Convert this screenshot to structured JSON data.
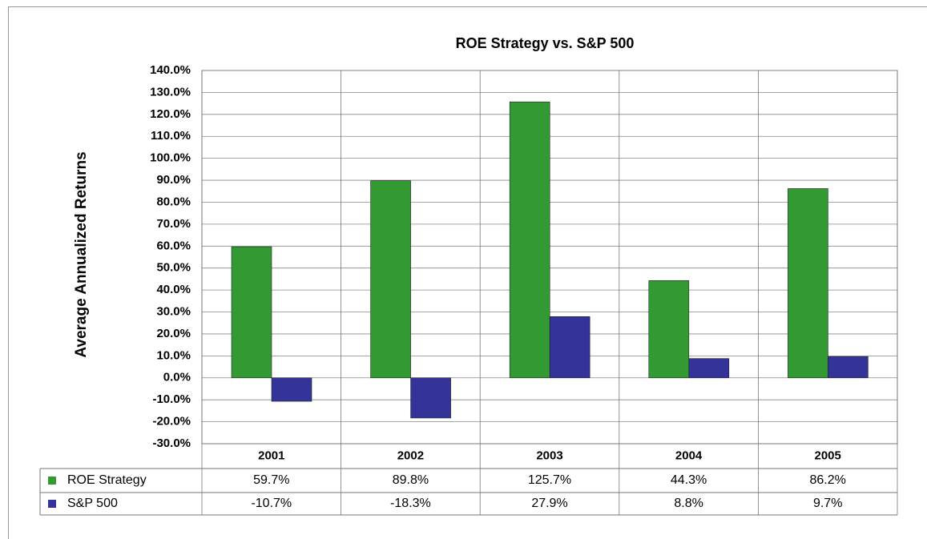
{
  "chart_data": {
    "type": "bar",
    "title": "ROE Strategy  vs.  S&P 500",
    "y_label": "Average Annualized Returns",
    "categories": [
      "2001",
      "2002",
      "2003",
      "2004",
      "2005"
    ],
    "series": [
      {
        "name": "ROE Strategy",
        "color": "#339933",
        "values": [
          59.7,
          89.8,
          125.7,
          44.3,
          86.2
        ],
        "value_labels": [
          "59.7%",
          "89.8%",
          "125.7%",
          "44.3%",
          "86.2%"
        ]
      },
      {
        "name": "S&P 500",
        "color": "#333399",
        "values": [
          -10.7,
          -18.3,
          27.9,
          8.8,
          9.7
        ],
        "value_labels": [
          "-10.7%",
          "-18.3%",
          "27.9%",
          "8.8%",
          "9.7%"
        ]
      }
    ],
    "ylim": [
      -30,
      140
    ],
    "yticks": [
      {
        "value": 140,
        "label": "140.0%"
      },
      {
        "value": 130,
        "label": "130.0%"
      },
      {
        "value": 120,
        "label": "120.0%"
      },
      {
        "value": 110,
        "label": "110.0%"
      },
      {
        "value": 100,
        "label": "100.0%"
      },
      {
        "value": 90,
        "label": "90.0%"
      },
      {
        "value": 80,
        "label": "80.0%"
      },
      {
        "value": 70,
        "label": "70.0%"
      },
      {
        "value": 60,
        "label": "60.0%"
      },
      {
        "value": 50,
        "label": "50.0%"
      },
      {
        "value": 40,
        "label": "40.0%"
      },
      {
        "value": 30,
        "label": "30.0%"
      },
      {
        "value": 20,
        "label": "20.0%"
      },
      {
        "value": 10,
        "label": "10.0%"
      },
      {
        "value": 0,
        "label": "0.0%"
      },
      {
        "value": -10,
        "label": "-10.0%"
      },
      {
        "value": -20,
        "label": "-20.0%"
      },
      {
        "value": -30,
        "label": "-30.0%"
      }
    ],
    "grid": true
  }
}
